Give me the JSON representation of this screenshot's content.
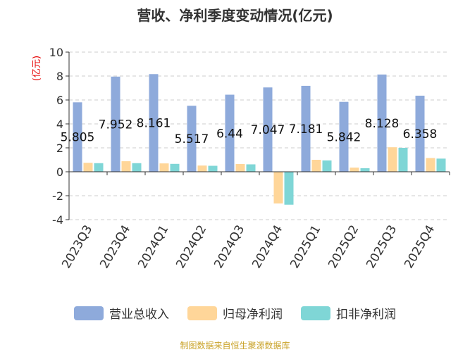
{
  "chart_data": {
    "type": "bar",
    "title": "营收、净利季度变动情况(亿元)",
    "ylabel": "(亿元)",
    "xlabel": "",
    "ylim": [
      -4,
      10
    ],
    "yticks": [
      -4,
      -2,
      0,
      2,
      4,
      6,
      8,
      10
    ],
    "grid": true,
    "legend_position": "bottom",
    "categories": [
      "2023Q3",
      "2023Q4",
      "2024Q1",
      "2024Q2",
      "2024Q3",
      "2024Q4",
      "2025Q1",
      "2025Q2",
      "2025Q3",
      "2025Q4"
    ],
    "series": [
      {
        "name": "营业总收入",
        "color": "#8eaadb",
        "values": [
          5.805,
          7.952,
          8.161,
          5.517,
          6.44,
          7.047,
          7.181,
          5.842,
          8.128,
          6.358
        ],
        "data_labels": [
          "5.805",
          "7.952",
          "8.161",
          "5.517",
          "6.44",
          "7.047",
          "7.181",
          "5.842",
          "8.128",
          "6.358"
        ]
      },
      {
        "name": "归母净利润",
        "color": "#ffd699",
        "values": [
          0.75,
          0.88,
          0.7,
          0.52,
          0.65,
          -2.65,
          1.0,
          0.35,
          2.05,
          1.15
        ]
      },
      {
        "name": "扣非净利润",
        "color": "#7fd6d6",
        "values": [
          0.72,
          0.72,
          0.66,
          0.5,
          0.62,
          -2.75,
          0.95,
          0.3,
          2.0,
          1.1
        ]
      }
    ],
    "source": "制图数据来自恒生聚源数据库"
  }
}
